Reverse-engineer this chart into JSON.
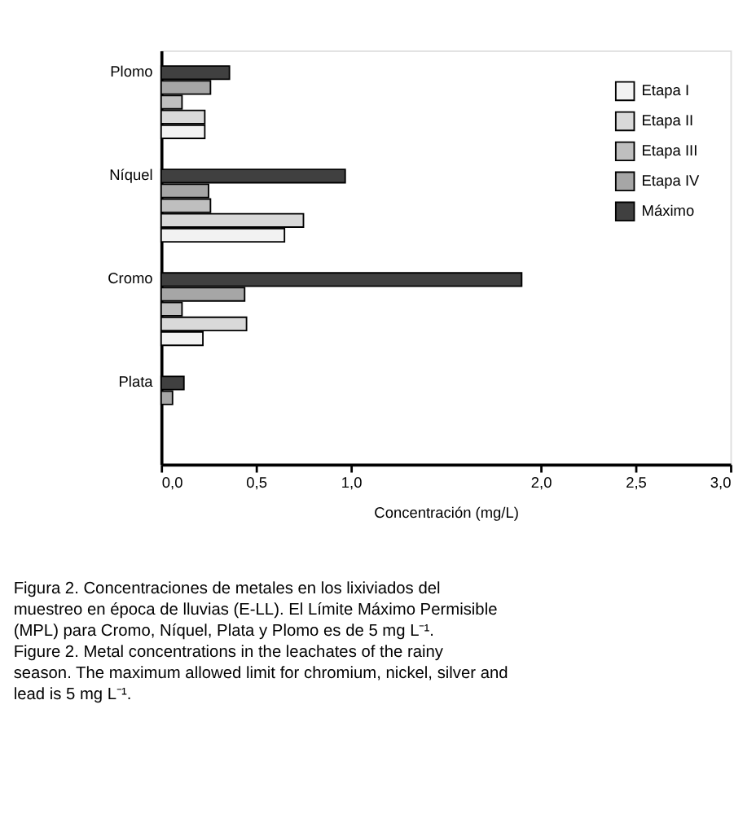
{
  "chart_data": {
    "type": "bar",
    "orientation": "horizontal",
    "categories": [
      "Plomo",
      "Níquel",
      "Cromo",
      "Plata"
    ],
    "series": [
      {
        "name": "Etapa I",
        "color": "#f2f2f2",
        "values": [
          0.23,
          0.65,
          0.22,
          null
        ]
      },
      {
        "name": "Etapa II",
        "color": "#d9d9d9",
        "values": [
          0.23,
          0.75,
          0.45,
          null
        ]
      },
      {
        "name": "Etapa III",
        "color": "#bfbfbf",
        "values": [
          0.11,
          0.26,
          0.11,
          null
        ]
      },
      {
        "name": "Etapa IV",
        "color": "#a6a6a6",
        "values": [
          0.26,
          0.25,
          0.44,
          0.06
        ]
      },
      {
        "name": "Máximo",
        "color": "#404040",
        "values": [
          0.36,
          0.97,
          1.9,
          0.12
        ]
      }
    ],
    "xlabel": "Concentración (mg/L)",
    "xlim": [
      0,
      3
    ],
    "xticks": [
      {
        "value": 0,
        "label": "0,0"
      },
      {
        "value": 0.5,
        "label": "0,5"
      },
      {
        "value": 1,
        "label": "1,0"
      },
      {
        "value": 2,
        "label": "2,0"
      },
      {
        "value": 2.5,
        "label": "2,5"
      },
      {
        "value": 3,
        "label": "3,0"
      }
    ],
    "legend": "top right",
    "grid": false,
    "annotations": [
      "Figura 2. Concentraciones de metales en los lixiviados del muestreo en época de lluvias (E-LL). El Límite Máximo Permisible (MPL) para Cromo, Níquel, Plata y Plomo es de 5 mg L⁻¹.",
      "Figure 2. Metal concentrations in the leachates of the rainy season. The maximum allowed limit for chromium, nickel, silver and lead is 5 mg L⁻¹."
    ]
  }
}
